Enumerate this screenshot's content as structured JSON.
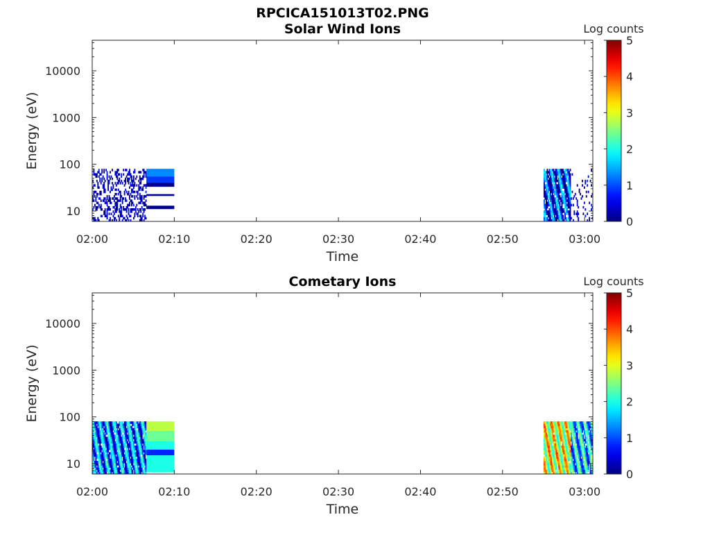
{
  "figure": {
    "title": "RPCICA151013T02.PNG"
  },
  "chart_data": [
    {
      "type": "heatmap",
      "title": "Solar Wind Ions",
      "xlabel": "Time",
      "ylabel": "Energy (eV)",
      "x_ticks": [
        "02:00",
        "02:10",
        "02:20",
        "02:30",
        "02:40",
        "02:50",
        "03:00"
      ],
      "xlim_minutes": [
        0,
        61
      ],
      "y_scale": "log",
      "y_ticks": [
        10,
        100,
        1000,
        10000
      ],
      "y_tick_labels": [
        "10",
        "100",
        "1000",
        "10000"
      ],
      "ylim": [
        6,
        45000
      ],
      "colorbar": {
        "label": "Log counts",
        "ticks": [
          0,
          1,
          2,
          3,
          4,
          5
        ],
        "colormap": "jet"
      },
      "blocks": [
        {
          "t_start": 0,
          "t_end": 6.6,
          "e_min": 6,
          "e_max": 80,
          "style": "sparse",
          "level": 0.3,
          "density": 0.35
        },
        {
          "t_start": 6.6,
          "t_end": 10,
          "e_min": 6,
          "e_max": 80,
          "style": "bands",
          "bands": [
            {
              "e_min": 55,
              "e_max": 80,
              "level": 1.3
            },
            {
              "e_min": 40,
              "e_max": 55,
              "level": 0.9
            },
            {
              "e_min": 33,
              "e_max": 40,
              "level": 0.05
            },
            {
              "e_min": 21,
              "e_max": 23,
              "level": 0.05
            },
            {
              "e_min": 11,
              "e_max": 13,
              "level": 0.05
            }
          ]
        },
        {
          "t_start": 55,
          "t_end": 58.3,
          "e_min": 6,
          "e_max": 80,
          "style": "dense",
          "level": 0.8,
          "density": 0.85
        },
        {
          "t_start": 58.3,
          "t_end": 61,
          "e_min": 6,
          "e_max": 80,
          "style": "sparse",
          "level": 0.3,
          "density": 0.12
        }
      ]
    },
    {
      "type": "heatmap",
      "title": "Cometary Ions",
      "xlabel": "Time",
      "ylabel": "Energy (eV)",
      "x_ticks": [
        "02:00",
        "02:10",
        "02:20",
        "02:30",
        "02:40",
        "02:50",
        "03:00"
      ],
      "xlim_minutes": [
        0,
        61
      ],
      "y_scale": "log",
      "y_ticks": [
        10,
        100,
        1000,
        10000
      ],
      "y_tick_labels": [
        "10",
        "100",
        "1000",
        "10000"
      ],
      "ylim": [
        6,
        45000
      ],
      "colorbar": {
        "label": "Log counts",
        "ticks": [
          0,
          1,
          2,
          3,
          4,
          5
        ],
        "colormap": "jet"
      },
      "blocks": [
        {
          "t_start": 0,
          "t_end": 6.6,
          "e_min": 6,
          "e_max": 80,
          "style": "dense",
          "level": 1.2,
          "density": 0.9
        },
        {
          "t_start": 6.6,
          "t_end": 10,
          "e_min": 6.5,
          "e_max": 80,
          "style": "bands",
          "bands": [
            {
              "e_min": 50,
              "e_max": 80,
              "level": 2.8
            },
            {
              "e_min": 30,
              "e_max": 50,
              "level": 2.4
            },
            {
              "e_min": 20,
              "e_max": 30,
              "level": 2.0
            },
            {
              "e_min": 15,
              "e_max": 20,
              "level": 0.8
            },
            {
              "e_min": 6.5,
              "e_max": 15,
              "level": 2.0
            }
          ]
        },
        {
          "t_start": 55,
          "t_end": 58.3,
          "e_min": 6,
          "e_max": 80,
          "style": "dense",
          "level": 3.0,
          "density": 0.95
        },
        {
          "t_start": 58.3,
          "t_end": 61,
          "e_min": 6,
          "e_max": 80,
          "style": "dense",
          "level": 1.6,
          "density": 0.85
        }
      ]
    }
  ]
}
